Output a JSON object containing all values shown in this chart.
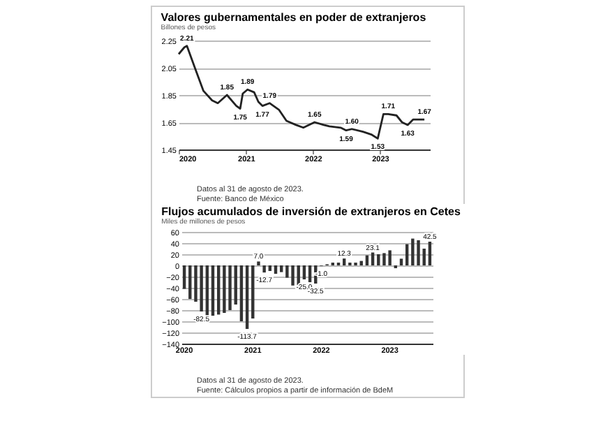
{
  "chart_data": [
    {
      "type": "line",
      "title": "Valores gubernamentales en poder de extranjeros",
      "subtitle": "Billones de pesos",
      "x": [
        "2020-01-01",
        "2020-02-01",
        "2020-02-15",
        "2020-04-01",
        "2020-05-15",
        "2020-07-01",
        "2020-08-01",
        "2020-09-20",
        "2020-11-10",
        "2020-12-01",
        "2020-12-15",
        "2021-01-10",
        "2021-02-15",
        "2021-03-10",
        "2021-04-01",
        "2021-05-10",
        "2021-07-01",
        "2021-08-10",
        "2021-10-01",
        "2021-11-10",
        "2022-01-10",
        "2022-03-01",
        "2022-04-01",
        "2022-06-01",
        "2022-07-01",
        "2022-08-01",
        "2022-10-01",
        "2022-11-15",
        "2022-12-20",
        "2023-01-20",
        "2023-02-15",
        "2023-04-01",
        "2023-05-01",
        "2023-06-01",
        "2023-07-01",
        "2023-08-31"
      ],
      "series": [
        {
          "color": "#222222",
          "values": [
            2.15,
            2.2,
            2.21,
            2.04,
            1.88,
            1.81,
            1.79,
            1.85,
            1.77,
            1.75,
            1.86,
            1.89,
            1.87,
            1.8,
            1.77,
            1.79,
            1.74,
            1.66,
            1.63,
            1.61,
            1.65,
            1.63,
            1.62,
            1.61,
            1.59,
            1.6,
            1.58,
            1.56,
            1.53,
            1.71,
            1.71,
            1.7,
            1.65,
            1.63,
            1.67,
            1.67
          ]
        }
      ],
      "xlim": [
        "2020-01-01",
        "2023-09-30"
      ],
      "xticks": [
        "2020",
        "2021",
        "2022",
        "2023"
      ],
      "ylim": [
        1.45,
        2.25
      ],
      "yticks": [
        1.45,
        1.65,
        1.85,
        2.05,
        2.25
      ],
      "grid": "y",
      "annotations": [
        {
          "text": "2.21",
          "x": "2020-02-15",
          "y": 2.21
        },
        {
          "text": "1.85",
          "x": "2020-09-20",
          "y": 1.85
        },
        {
          "text": "1.75",
          "x": "2020-12-01",
          "y": 1.75
        },
        {
          "text": "1.89",
          "x": "2021-01-10",
          "y": 1.89
        },
        {
          "text": "1.77",
          "x": "2021-04-01",
          "y": 1.77
        },
        {
          "text": "1.79",
          "x": "2021-05-10",
          "y": 1.79
        },
        {
          "text": "1.65",
          "x": "2022-01-10",
          "y": 1.65
        },
        {
          "text": "1.59",
          "x": "2022-07-01",
          "y": 1.59
        },
        {
          "text": "1.60",
          "x": "2022-08-01",
          "y": 1.6
        },
        {
          "text": "1.53",
          "x": "2022-12-20",
          "y": 1.53
        },
        {
          "text": "1.71",
          "x": "2023-02-15",
          "y": 1.71
        },
        {
          "text": "1.63",
          "x": "2023-06-01",
          "y": 1.63
        },
        {
          "text": "1.67",
          "x": "2023-08-31",
          "y": 1.67
        },
        "Datos al 31 de agosto de 2023.",
        "Fuente: Banco de México"
      ]
    },
    {
      "type": "bar",
      "title": "Flujos acumulados de inversión de extranjeros en Cetes",
      "subtitle": "Miles de millones de pesos",
      "categories": [
        "2020",
        null,
        null,
        null,
        null,
        null,
        null,
        null,
        null,
        null,
        null,
        null,
        "2021",
        null,
        null,
        null,
        null,
        null,
        null,
        null,
        null,
        null,
        null,
        null,
        "2022",
        null,
        null,
        null,
        null,
        null,
        null,
        null,
        null,
        null,
        null,
        null,
        "2023",
        null,
        null,
        null,
        null,
        null,
        null,
        null
      ],
      "series": [
        {
          "color": "#333333",
          "values": [
            -42,
            -60,
            -65,
            -82.5,
            -90,
            -90,
            -88,
            -85,
            -80,
            -70,
            -100,
            -113.7,
            -95,
            7.0,
            -12.7,
            -10,
            -15,
            -12,
            -22,
            -36,
            -35,
            -25.0,
            -30,
            -32.5,
            -1.0,
            2,
            5,
            5,
            12.3,
            5,
            5,
            8,
            18,
            23.1,
            20,
            22,
            27,
            -5,
            12,
            38,
            48,
            45,
            30,
            42.5
          ],
          "value_labels": [
            null,
            null,
            null,
            "-82.5",
            null,
            null,
            null,
            null,
            null,
            null,
            null,
            "-113.7",
            null,
            "7.0",
            "-12.7",
            null,
            null,
            null,
            null,
            null,
            null,
            "-25.0",
            null,
            "-32.5",
            "-1.0",
            null,
            null,
            null,
            "12.3",
            null,
            null,
            null,
            null,
            "23.1",
            null,
            null,
            null,
            null,
            null,
            null,
            null,
            null,
            null,
            "42.5"
          ]
        }
      ],
      "ylim": [
        -140,
        60
      ],
      "yticks": [
        -140,
        -120,
        -100,
        -80,
        -60,
        -40,
        -20,
        0,
        20,
        40,
        60
      ],
      "grid": "y",
      "annotations": [
        "Datos al 31 de agosto de 2023.",
        "Fuente: Cálculos propios a partir de información de BdeM"
      ]
    }
  ]
}
